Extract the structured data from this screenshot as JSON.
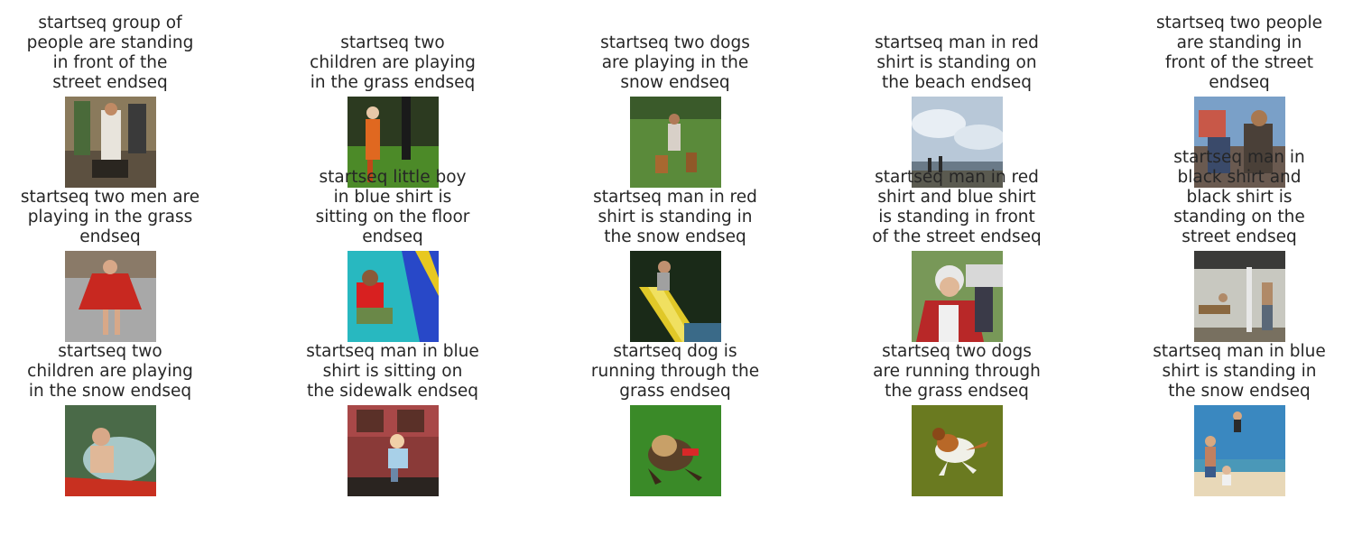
{
  "grid": [
    {
      "lines": [
        "startseq group of",
        "people are standing",
        "in front of the",
        "street endseq"
      ]
    },
    {
      "lines": [
        "startseq two",
        "children are playing",
        "in the grass endseq"
      ]
    },
    {
      "lines": [
        "startseq two dogs",
        "are playing in the",
        "snow endseq"
      ]
    },
    {
      "lines": [
        "startseq man in red",
        "shirt is standing on",
        "the beach endseq"
      ]
    },
    {
      "lines": [
        "startseq two people",
        "are standing in",
        "front of the street",
        "endseq"
      ]
    },
    {
      "lines": [
        "startseq two men are",
        "playing in the grass",
        "endseq"
      ]
    },
    {
      "lines": [
        "startseq little boy",
        "in blue shirt is",
        "sitting on the floor",
        "endseq"
      ]
    },
    {
      "lines": [
        "startseq man in red",
        "shirt is standing in",
        "the snow endseq"
      ]
    },
    {
      "lines": [
        "startseq man in red",
        "shirt and blue shirt",
        "is standing in front",
        "of the street endseq"
      ]
    },
    {
      "lines": [
        "startseq man in",
        "black shirt and",
        "black shirt is",
        "standing on the",
        "street endseq"
      ]
    },
    {
      "lines": [
        "startseq two",
        "children are playing",
        "in the snow endseq"
      ]
    },
    {
      "lines": [
        "startseq man in blue",
        "shirt is sitting on",
        "the sidewalk endseq"
      ]
    },
    {
      "lines": [
        "startseq dog is",
        "running through the",
        "grass endseq"
      ]
    },
    {
      "lines": [
        "startseq two dogs",
        "are running through",
        "the grass endseq"
      ]
    },
    {
      "lines": [
        "startseq man in blue",
        "shirt is standing in",
        "the snow endseq"
      ]
    }
  ]
}
